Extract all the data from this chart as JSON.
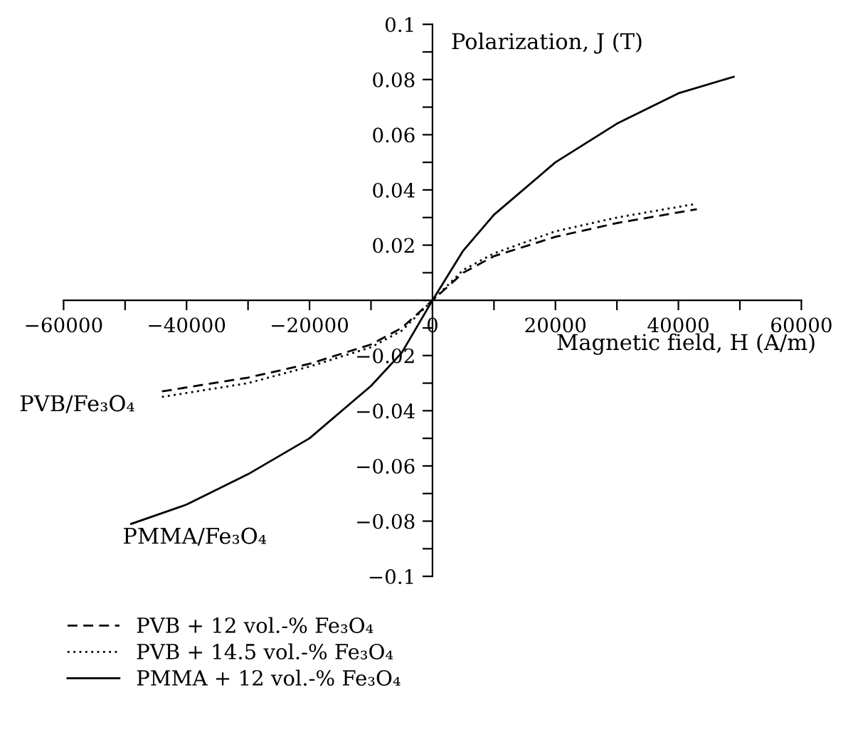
{
  "chart_data": {
    "type": "line",
    "xlabel": "Magnetic field, H (A/m)",
    "ylabel": "Polarization, J (T)",
    "xlim": [
      -60000,
      60000
    ],
    "ylim": [
      -0.1,
      0.1
    ],
    "xticks": [
      -60000,
      {
        "value": -50000,
        "label": null
      },
      -40000,
      {
        "value": -30000,
        "label": null
      },
      -20000,
      {
        "value": -10000,
        "label": null
      },
      0,
      {
        "value": 10000,
        "label": null
      },
      20000,
      {
        "value": 30000,
        "label": null
      },
      40000,
      {
        "value": 50000,
        "label": null
      },
      60000
    ],
    "yticks": [
      -0.1,
      {
        "value": -0.09,
        "label": null
      },
      -0.08,
      {
        "value": -0.07,
        "label": null
      },
      -0.06,
      {
        "value": -0.05,
        "label": null
      },
      -0.04,
      {
        "value": -0.03,
        "label": null
      },
      -0.02,
      {
        "value": -0.01,
        "label": null
      },
      {
        "value": 0,
        "label": null
      },
      {
        "value": 0.01,
        "label": null
      },
      0.02,
      {
        "value": 0.03,
        "label": null
      },
      0.04,
      {
        "value": 0.05,
        "label": null
      },
      0.06,
      {
        "value": 0.07,
        "label": null
      },
      0.08,
      {
        "value": 0.09,
        "label": null
      },
      0.1
    ],
    "grid": false,
    "legend": "bottom",
    "marker": "none",
    "annotations": [
      "PVB/Fe₃O₄",
      "PMMA/Fe₃O₄"
    ],
    "series": [
      {
        "name": "PVB + 12 vol.-% Fe₃O₄",
        "color": "#000000",
        "line_style": "dashed",
        "x": [
          -44000,
          -30000,
          -20000,
          -10000,
          -5000,
          0,
          5000,
          10000,
          20000,
          30000,
          43000
        ],
        "values": [
          -0.033,
          -0.028,
          -0.023,
          -0.016,
          -0.01,
          0,
          0.01,
          0.016,
          0.023,
          0.028,
          0.033
        ]
      },
      {
        "name": "PVB + 14.5 vol.-% Fe₃O₄",
        "color": "#000000",
        "line_style": "dotted",
        "x": [
          -44000,
          -30000,
          -20000,
          -10000,
          -5000,
          0,
          5000,
          10000,
          20000,
          30000,
          43000
        ],
        "values": [
          -0.035,
          -0.03,
          -0.024,
          -0.017,
          -0.011,
          0,
          0.011,
          0.017,
          0.025,
          0.03,
          0.035
        ]
      },
      {
        "name": "PMMA + 12 vol.-% Fe₃O₄",
        "color": "#000000",
        "line_style": "solid",
        "x": [
          -49000,
          -40000,
          -30000,
          -20000,
          -10000,
          -5000,
          0,
          5000,
          10000,
          20000,
          30000,
          40000,
          49000
        ],
        "values": [
          -0.081,
          -0.074,
          -0.063,
          -0.05,
          -0.031,
          -0.019,
          0,
          0.018,
          0.031,
          0.05,
          0.064,
          0.075,
          0.081
        ]
      }
    ]
  }
}
